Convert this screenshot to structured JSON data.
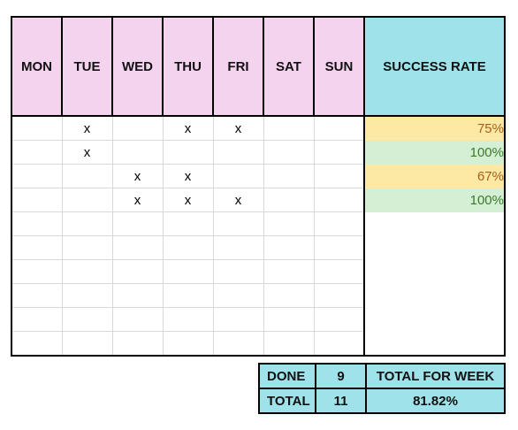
{
  "headers": {
    "days": [
      "MON",
      "TUE",
      "WED",
      "THU",
      "FRI",
      "SAT",
      "SUN"
    ],
    "success_rate": "SUCCESS RATE"
  },
  "rows": [
    {
      "marks": [
        "",
        "x",
        "",
        "x",
        "x",
        "",
        ""
      ],
      "rate": "75%",
      "rate_color": "yellow"
    },
    {
      "marks": [
        "",
        "x",
        "",
        "",
        "",
        "",
        ""
      ],
      "rate": "100%",
      "rate_color": "green"
    },
    {
      "marks": [
        "",
        "",
        "x",
        "x",
        "",
        "",
        ""
      ],
      "rate": "67%",
      "rate_color": "yellow"
    },
    {
      "marks": [
        "",
        "",
        "x",
        "x",
        "x",
        "",
        ""
      ],
      "rate": "100%",
      "rate_color": "green"
    },
    {
      "marks": [
        "",
        "",
        "",
        "",
        "",
        "",
        ""
      ],
      "rate": "",
      "rate_color": ""
    },
    {
      "marks": [
        "",
        "",
        "",
        "",
        "",
        "",
        ""
      ],
      "rate": "",
      "rate_color": ""
    },
    {
      "marks": [
        "",
        "",
        "",
        "",
        "",
        "",
        ""
      ],
      "rate": "",
      "rate_color": ""
    },
    {
      "marks": [
        "",
        "",
        "",
        "",
        "",
        "",
        ""
      ],
      "rate": "",
      "rate_color": ""
    },
    {
      "marks": [
        "",
        "",
        "",
        "",
        "",
        "",
        ""
      ],
      "rate": "",
      "rate_color": ""
    },
    {
      "marks": [
        "",
        "",
        "",
        "",
        "",
        "",
        ""
      ],
      "rate": "",
      "rate_color": ""
    }
  ],
  "summary": {
    "done_label": "DONE",
    "done_value": "9",
    "total_label": "TOTAL",
    "total_value": "11",
    "week_label": "TOTAL FOR WEEK",
    "week_value": "81.82%"
  },
  "colors": {
    "day_header_bg": "#f4d3ee",
    "rate_header_bg": "#9fe2ea",
    "rate_yellow_bg": "#fde9a4",
    "rate_green_bg": "#d4efd4"
  }
}
